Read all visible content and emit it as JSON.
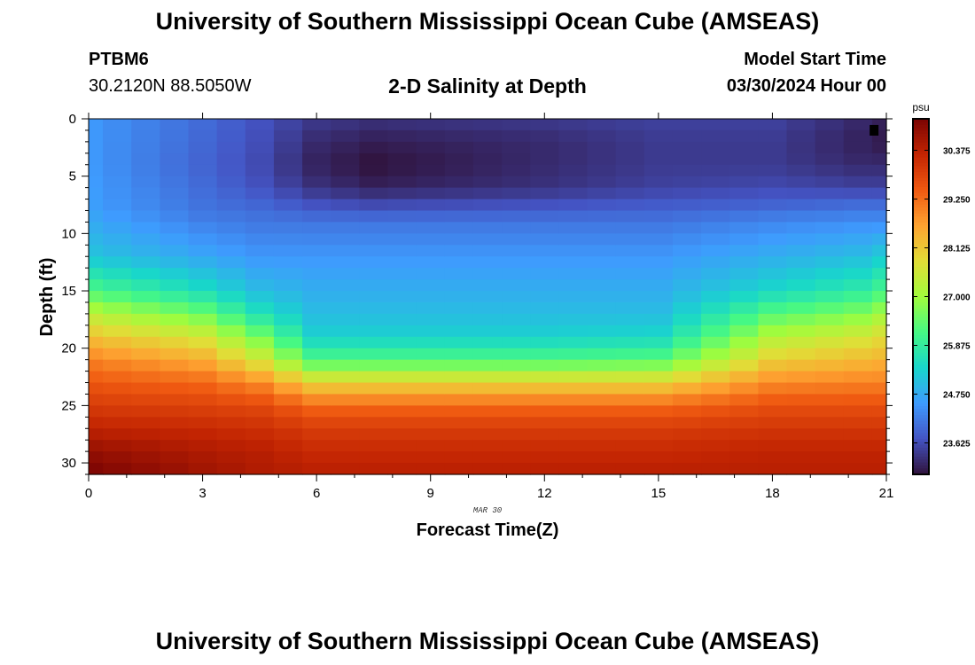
{
  "header": {
    "title": "University of Southern Mississippi Ocean Cube (AMSEAS)",
    "station_id": "PTBM6",
    "station_coords": "30.2120N  88.5050W",
    "plot_title": "2-D Salinity at Depth",
    "model_start_label": "Model Start Time",
    "model_start_time": "03/30/2024 Hour 00"
  },
  "footer": {
    "title": "University of Southern Mississippi Ocean Cube (AMSEAS)"
  },
  "chart_data": {
    "type": "heatmap",
    "title": "2-D Salinity at Depth",
    "xlabel": "Forecast Time(Z)",
    "ylabel": "Depth (ft)",
    "x_range": [
      0,
      21
    ],
    "y_range": [
      0,
      31
    ],
    "x_ticks": [
      "0",
      "3",
      "6",
      "9",
      "12",
      "15",
      "18",
      "21"
    ],
    "y_ticks": [
      "0",
      "5",
      "10",
      "15",
      "20",
      "25",
      "30"
    ],
    "date_label": "MAR 30",
    "colorbar": {
      "unit": "psu",
      "min": 22.9,
      "max": 31.1,
      "ticks": [
        "30.375",
        "29.250",
        "28.125",
        "27.000",
        "25.875",
        "24.750",
        "23.625"
      ]
    },
    "colormap": [
      "#30123b",
      "#4454c4",
      "#3e9bfe",
      "#18d6cb",
      "#46f884",
      "#a2fc3c",
      "#e1dd37",
      "#fea331",
      "#ef5911",
      "#c22402",
      "#7a0403"
    ],
    "columns_x": [
      0,
      0.75,
      1.5,
      2.25,
      3,
      3.75,
      4.5,
      5.25,
      6,
      6.75,
      7.5,
      8.25,
      9,
      9.75,
      10.5,
      11.25,
      12,
      12.75,
      13.5,
      14.25,
      15,
      15.75,
      16.5,
      17.25,
      18,
      18.75,
      19.5,
      20.25,
      21
    ],
    "profiles": [
      {
        "x": 0,
        "depths": [
          0,
          4,
          8,
          12,
          15,
          17,
          19,
          21,
          23,
          25,
          27,
          29,
          31
        ],
        "values": [
          24.5,
          24.5,
          24.6,
          25.1,
          26.2,
          27.3,
          28.2,
          29.0,
          29.5,
          29.9,
          30.3,
          30.8,
          31.1
        ]
      },
      {
        "x": 3,
        "depths": [
          0,
          4,
          8,
          12,
          15,
          17,
          19,
          21,
          23,
          25,
          27,
          29,
          31
        ],
        "values": [
          24.0,
          23.9,
          24.1,
          24.7,
          25.5,
          26.5,
          27.6,
          28.5,
          29.3,
          29.8,
          30.2,
          30.5,
          30.7
        ]
      },
      {
        "x": 4.5,
        "depths": [
          0,
          4,
          6,
          8,
          12,
          15,
          17,
          19,
          21,
          23,
          25,
          27,
          29,
          31
        ],
        "values": [
          23.7,
          23.6,
          23.7,
          24.0,
          24.5,
          25.0,
          25.6,
          26.6,
          27.6,
          28.9,
          29.7,
          30.1,
          30.4,
          30.5
        ]
      },
      {
        "x": 6,
        "depths": [
          0,
          2,
          4,
          6,
          7.5,
          9,
          12,
          15,
          17,
          19,
          21,
          22,
          23,
          24,
          25,
          27,
          29,
          31
        ],
        "values": [
          23.4,
          23.2,
          23.1,
          23.3,
          23.7,
          24.1,
          24.5,
          24.8,
          25.0,
          25.3,
          26.2,
          27.0,
          28.0,
          28.6,
          29.3,
          29.9,
          30.2,
          30.4
        ]
      },
      {
        "x": 7.5,
        "depths": [
          0,
          2,
          4,
          6,
          7.5,
          9,
          12,
          15,
          17,
          19,
          21,
          22,
          23,
          24,
          25,
          27,
          29,
          31
        ],
        "values": [
          23.3,
          23.05,
          22.9,
          23.1,
          23.6,
          24.1,
          24.5,
          24.8,
          25.0,
          25.3,
          26.2,
          27.0,
          28.0,
          28.6,
          29.3,
          29.9,
          30.2,
          30.4
        ]
      },
      {
        "x": 12,
        "depths": [
          0,
          2,
          4,
          6,
          7.5,
          9,
          12,
          15,
          17,
          19,
          21,
          22,
          23,
          24,
          25,
          27,
          29,
          31
        ],
        "values": [
          23.4,
          23.2,
          23.2,
          23.3,
          23.7,
          24.1,
          24.5,
          24.8,
          25.0,
          25.3,
          26.2,
          27.0,
          28.0,
          28.6,
          29.3,
          29.9,
          30.2,
          30.4
        ]
      },
      {
        "x": 15,
        "depths": [
          0,
          2,
          4,
          6,
          7.5,
          9,
          12,
          15,
          17,
          19,
          21,
          22,
          23,
          24,
          25,
          27,
          29,
          31
        ],
        "values": [
          23.5,
          23.4,
          23.4,
          23.5,
          23.8,
          24.1,
          24.5,
          24.8,
          25.0,
          25.4,
          26.3,
          27.1,
          28.0,
          28.6,
          29.3,
          29.9,
          30.2,
          30.4
        ]
      },
      {
        "x": 18,
        "depths": [
          0,
          2,
          4,
          6,
          7.5,
          9,
          12,
          15,
          17,
          19,
          21,
          23,
          25,
          27,
          29,
          31
        ],
        "values": [
          23.5,
          23.4,
          23.4,
          23.6,
          23.9,
          24.3,
          24.8,
          25.4,
          26.3,
          27.2,
          28.0,
          28.9,
          29.6,
          30.0,
          30.3,
          30.4
        ]
      },
      {
        "x": 20.25,
        "depths": [
          0,
          2,
          4,
          6,
          7.5,
          9,
          12,
          15,
          17,
          19,
          21,
          23,
          25,
          27,
          29,
          31
        ],
        "values": [
          23.2,
          23.1,
          23.2,
          23.5,
          24.0,
          24.4,
          25.0,
          25.8,
          26.7,
          27.6,
          28.3,
          29.0,
          29.6,
          30.0,
          30.3,
          30.4
        ]
      },
      {
        "x": 21,
        "depths": [
          0,
          2,
          4,
          6,
          7.5,
          9,
          12,
          15,
          17,
          19,
          21,
          23,
          25,
          27,
          29,
          31
        ],
        "values": [
          23.1,
          23.0,
          23.2,
          23.5,
          24.0,
          24.4,
          25.2,
          26.1,
          27.0,
          27.8,
          28.4,
          29.0,
          29.6,
          30.0,
          30.3,
          30.4
        ]
      }
    ],
    "station_marker": {
      "x": 20.7,
      "y": 1,
      "label": "station-marker"
    }
  }
}
